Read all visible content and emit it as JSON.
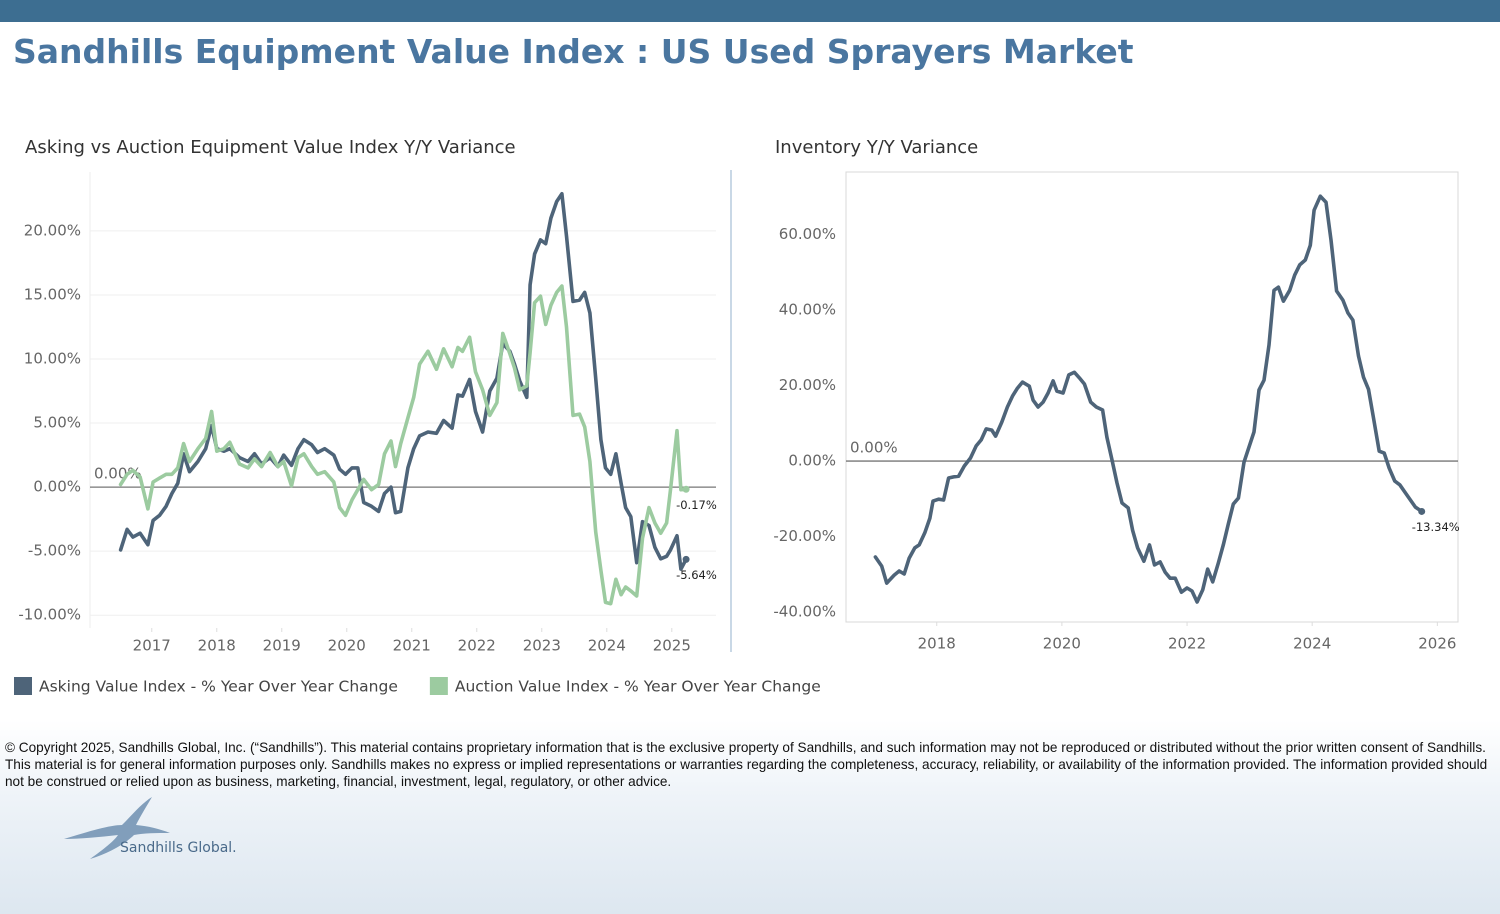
{
  "header": {
    "title": "Sandhills Equipment Value Index : US Used Sprayers Market"
  },
  "chart_data": [
    {
      "type": "line",
      "title": "Asking vs Auction Equipment Value Index Y/Y Variance",
      "x": [
        2016.52,
        2016.62,
        2016.71,
        2016.82,
        2016.94,
        2017.02,
        2017.12,
        2017.22,
        2017.31,
        2017.4,
        2017.49,
        2017.58,
        2017.71,
        2017.83,
        2017.92,
        2018.0,
        2018.11,
        2018.2,
        2018.35,
        2018.48,
        2018.58,
        2018.69,
        2018.82,
        2018.94,
        2019.03,
        2019.15,
        2019.25,
        2019.34,
        2019.46,
        2019.55,
        2019.66,
        2019.8,
        2019.89,
        2019.98,
        2020.08,
        2020.17,
        2020.26,
        2020.38,
        2020.49,
        2020.58,
        2020.68,
        2020.75,
        2020.83,
        2020.94,
        2021.03,
        2021.12,
        2021.25,
        2021.38,
        2021.49,
        2021.62,
        2021.71,
        2021.78,
        2021.89,
        2021.98,
        2022.09,
        2022.2,
        2022.31,
        2022.4,
        2022.51,
        2022.58,
        2022.66,
        2022.77,
        2022.82,
        2022.89,
        2022.98,
        2023.06,
        2023.14,
        2023.23,
        2023.31,
        2023.38,
        2023.48,
        2023.58,
        2023.66,
        2023.74,
        2023.83,
        2023.91,
        2023.98,
        2024.06,
        2024.14,
        2024.22,
        2024.29,
        2024.37,
        2024.46,
        2024.55,
        2024.65,
        2024.74,
        2024.83,
        2024.92,
        2024.98,
        2025.08,
        2025.14,
        2025.22
      ],
      "series": [
        {
          "name": "Asking Value Index - % Year Over Year Change",
          "color": "#4e6479",
          "last_label": "-5.64%",
          "values": [
            -4.9,
            -3.3,
            -3.9,
            -3.6,
            -4.5,
            -2.6,
            -2.2,
            -1.5,
            -0.5,
            0.3,
            2.6,
            1.2,
            2.0,
            3.0,
            4.8,
            3.0,
            2.8,
            3.0,
            2.3,
            2.0,
            2.6,
            1.8,
            2.3,
            1.6,
            2.5,
            1.7,
            3.0,
            3.7,
            3.3,
            2.7,
            3.0,
            2.5,
            1.4,
            1.0,
            1.5,
            1.5,
            -1.2,
            -1.5,
            -1.9,
            -0.5,
            0.0,
            -2.0,
            -1.9,
            1.5,
            3.0,
            4.0,
            4.3,
            4.2,
            5.2,
            4.6,
            7.2,
            7.1,
            8.4,
            5.9,
            4.3,
            7.5,
            8.5,
            11.2,
            10.6,
            9.6,
            8.3,
            7.0,
            15.8,
            18.2,
            19.3,
            19.0,
            21.0,
            22.3,
            22.9,
            19.6,
            14.5,
            14.6,
            15.2,
            13.6,
            8.5,
            3.7,
            1.5,
            1.0,
            2.6,
            0.3,
            -1.6,
            -2.3,
            -5.9,
            -2.7,
            -3.0,
            -4.7,
            -5.6,
            -5.4,
            -4.9,
            -3.8,
            -6.4,
            -5.64
          ]
        },
        {
          "name": "Auction Value Index - % Year Over Year Change",
          "color": "#9ccba0",
          "last_label": "-0.17%",
          "values": [
            0.2,
            1.0,
            1.3,
            0.8,
            -1.7,
            0.4,
            0.7,
            1.0,
            1.0,
            1.5,
            3.4,
            2.0,
            3.0,
            3.8,
            5.9,
            2.8,
            3.0,
            3.5,
            1.8,
            1.5,
            2.2,
            1.6,
            2.7,
            1.6,
            2.0,
            0.1,
            2.3,
            2.6,
            1.6,
            1.0,
            1.2,
            0.4,
            -1.6,
            -2.2,
            -1.0,
            -0.2,
            0.6,
            -0.2,
            0.2,
            2.6,
            3.6,
            1.6,
            3.4,
            5.4,
            7.0,
            9.6,
            10.6,
            9.2,
            10.8,
            9.4,
            10.9,
            10.6,
            11.7,
            9.0,
            7.6,
            5.6,
            6.6,
            12.0,
            10.4,
            9.3,
            7.6,
            7.9,
            10.5,
            14.4,
            14.9,
            12.7,
            14.2,
            15.2,
            15.7,
            12.5,
            5.6,
            5.7,
            4.7,
            2.0,
            -3.5,
            -6.5,
            -9.0,
            -9.1,
            -7.2,
            -8.4,
            -7.8,
            -8.1,
            -8.5,
            -4.0,
            -1.6,
            -2.8,
            -3.6,
            -2.8,
            -0.2,
            4.4,
            -0.2,
            -0.17
          ]
        }
      ],
      "xlim": [
        2016.05,
        2025.68
      ],
      "xticks": [
        2017,
        2018,
        2019,
        2020,
        2021,
        2022,
        2023,
        2024,
        2025
      ],
      "ylim": [
        -11,
        24.6
      ],
      "yticks": [
        {
          "value": -10,
          "label": "-10.00%"
        },
        {
          "value": -5,
          "label": "-5.00%"
        },
        {
          "value": 0,
          "label": "0.00%"
        },
        {
          "value": 5,
          "label": "5.00%"
        },
        {
          "value": 10,
          "label": "10.00%"
        },
        {
          "value": 15,
          "label": "15.00%"
        },
        {
          "value": 20,
          "label": "20.00%"
        }
      ],
      "reference_line": {
        "value": 0,
        "label": "0.00%"
      },
      "grid": true,
      "frame": false,
      "legend": "bottom"
    },
    {
      "type": "line",
      "title": "Inventory Y/Y Variance",
      "x": [
        2017.02,
        2017.12,
        2017.2,
        2017.32,
        2017.4,
        2017.48,
        2017.56,
        2017.65,
        2017.72,
        2017.81,
        2017.89,
        2017.94,
        2018.03,
        2018.11,
        2018.19,
        2018.27,
        2018.35,
        2018.44,
        2018.54,
        2018.63,
        2018.71,
        2018.79,
        2018.88,
        2018.94,
        2019.04,
        2019.13,
        2019.21,
        2019.29,
        2019.37,
        2019.48,
        2019.54,
        2019.62,
        2019.7,
        2019.78,
        2019.86,
        2019.92,
        2020.02,
        2020.11,
        2020.2,
        2020.28,
        2020.36,
        2020.46,
        2020.55,
        2020.65,
        2020.72,
        2020.8,
        2020.88,
        2020.96,
        2021.06,
        2021.13,
        2021.21,
        2021.31,
        2021.4,
        2021.48,
        2021.57,
        2021.65,
        2021.73,
        2021.81,
        2021.91,
        2022.0,
        2022.08,
        2022.16,
        2022.25,
        2022.33,
        2022.41,
        2022.5,
        2022.58,
        2022.66,
        2022.74,
        2022.82,
        2022.91,
        2022.99,
        2023.07,
        2023.15,
        2023.23,
        2023.31,
        2023.39,
        2023.46,
        2023.54,
        2023.64,
        2023.72,
        2023.8,
        2023.89,
        2023.97,
        2024.03,
        2024.13,
        2024.22,
        2024.3,
        2024.39,
        2024.49,
        2024.57,
        2024.65,
        2024.74,
        2024.82,
        2024.9,
        2024.98,
        2025.07,
        2025.15,
        2025.23,
        2025.32,
        2025.4,
        2025.48,
        2025.57,
        2025.65,
        2025.75
      ],
      "series": [
        {
          "name": "Inventory Y/Y Variance",
          "color": "#4e6479",
          "last_label": "-13.34%",
          "values": [
            -25.4,
            -27.8,
            -32.3,
            -30.2,
            -29.1,
            -29.9,
            -25.7,
            -23.0,
            -22.2,
            -19.0,
            -15.1,
            -10.6,
            -10.1,
            -10.3,
            -4.5,
            -4.2,
            -4.0,
            -1.3,
            0.8,
            4.0,
            5.6,
            8.5,
            8.2,
            6.6,
            10.3,
            14.3,
            17.2,
            19.3,
            20.9,
            19.8,
            16.1,
            14.3,
            15.6,
            18.0,
            21.2,
            18.5,
            18.0,
            22.8,
            23.5,
            22.0,
            20.4,
            15.6,
            14.3,
            13.5,
            6.3,
            0.3,
            -5.8,
            -11.1,
            -12.4,
            -18.3,
            -23.0,
            -26.5,
            -22.2,
            -27.5,
            -26.7,
            -29.4,
            -31.0,
            -31.0,
            -34.7,
            -33.6,
            -34.4,
            -37.3,
            -34.1,
            -28.6,
            -32.0,
            -27.0,
            -22.2,
            -16.7,
            -11.4,
            -9.8,
            -0.3,
            3.7,
            7.7,
            18.8,
            21.4,
            30.7,
            45.2,
            46.0,
            42.3,
            45.2,
            49.2,
            51.9,
            53.2,
            57.1,
            66.4,
            70.1,
            68.5,
            58.5,
            45.0,
            42.6,
            39.2,
            37.3,
            27.8,
            22.2,
            19.0,
            11.4,
            2.6,
            2.1,
            -1.9,
            -5.3,
            -6.3,
            -8.2,
            -10.3,
            -12.2,
            -13.34
          ]
        }
      ],
      "xlim": [
        2016.55,
        2026.33
      ],
      "xticks": [
        2018,
        2020,
        2022,
        2024,
        2026
      ],
      "ylim": [
        -42.6,
        76.5
      ],
      "yticks": [
        {
          "value": -40,
          "label": "-40.00%"
        },
        {
          "value": -20,
          "label": "-20.00%"
        },
        {
          "value": 0,
          "label": "0.00%"
        },
        {
          "value": 20,
          "label": "20.00%"
        },
        {
          "value": 40,
          "label": "40.00%"
        },
        {
          "value": 60,
          "label": "60.00%"
        }
      ],
      "reference_line": {
        "value": 0,
        "label": "0.00%"
      },
      "grid": false,
      "frame": true
    }
  ],
  "footer": {
    "copyright": "© Copyright 2025, Sandhills Global, Inc. (“Sandhills”). This material contains proprietary information that is the exclusive property of Sandhills, and such information may not be reproduced or distributed without the prior written consent of Sandhills. This material is for general information purposes only. Sandhills makes no express or implied representations or warranties regarding the completeness, accuracy, reliability, or availability of the information provided. The information provided should not be construed or relied upon as business, marketing, financial, investment, legal, regulatory, or other advice.",
    "logo": "Sandhills Global."
  }
}
